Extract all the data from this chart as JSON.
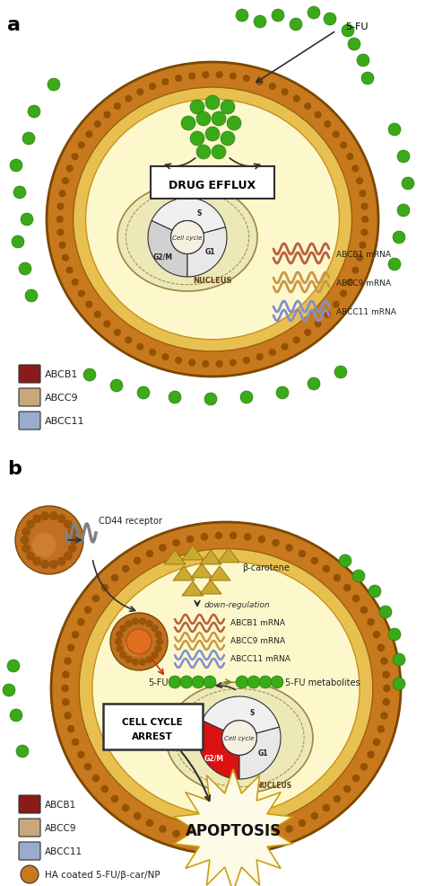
{
  "bg_color": "#ffffff",
  "cell_membrane_brown": "#c8791e",
  "cell_membrane_dots": "#8b4a00",
  "cell_interior": "#fdf8d0",
  "nucleus_fill": "#ede8b8",
  "nucleus_border": "#9b8840",
  "abcb1_color": "#8b1a1a",
  "abcc9_color": "#c8a87a",
  "abcc11_color": "#9aabcc",
  "drug_dot_color": "#3aaa18",
  "drug_dot_edge": "#1e6e08",
  "beta_carotene_color": "#ccaa30",
  "rna_abcb1_color": "#b86040",
  "rna_abcc9_color": "#c89848",
  "rna_abcc11_color": "#8090cc",
  "arrow_color": "#303030",
  "apoptosis_fill": "#fdfae8",
  "apoptosis_border": "#c8a018",
  "cell_cycle_red": "#dd1111",
  "cell_cycle_gray1": "#d0d0d0",
  "cell_cycle_gray2": "#e8e8e8",
  "cell_cycle_gray3": "#f0f0f0",
  "legend_a": [
    {
      "label": "ABCB1",
      "color": "#8b1a1a"
    },
    {
      "label": "ABCC9",
      "color": "#c8a87a"
    },
    {
      "label": "ABCC11",
      "color": "#9aabcc"
    }
  ],
  "legend_b": [
    {
      "label": "ABCB1",
      "color": "#8b1a1a"
    },
    {
      "label": "ABCC9",
      "color": "#c8a87a"
    },
    {
      "label": "ABCC11",
      "color": "#9aabcc"
    },
    {
      "label": "HA coated 5-FU/β-car/NP",
      "color": "#c8791e"
    }
  ]
}
